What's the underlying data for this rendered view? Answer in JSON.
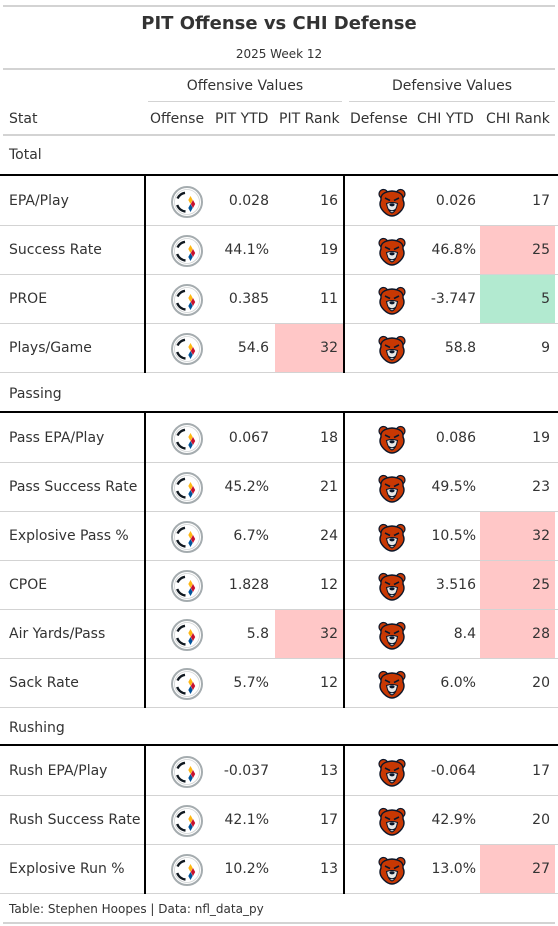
{
  "title": "PIT Offense vs CHI Defense",
  "subtitle": "2025 Week 12",
  "spanners": {
    "offense": "Offensive Values",
    "defense": "Defensive Values"
  },
  "columns": {
    "stat": "Stat",
    "offense": "Offense",
    "pit_ytd": "PIT YTD",
    "pit_rank": "PIT Rank",
    "defense": "Defense",
    "chi_ytd": "CHI YTD",
    "chi_rank": "CHI Rank"
  },
  "icons": {
    "offense_logo": "steelers-logo",
    "defense_logo": "bears-logo"
  },
  "colors": {
    "bad_rank": "#ffc7c7",
    "good_rank": "#b2ead0",
    "steelers_gold": "#ffb612",
    "bears_orange": "#c83803",
    "bears_navy": "#0b162a"
  },
  "groups": [
    {
      "name": "Total",
      "rows": [
        {
          "stat": "EPA/Play",
          "pit_ytd": "0.028",
          "pit_rank": "16",
          "pit_rank_color": "",
          "chi_ytd": "0.026",
          "chi_rank": "17",
          "chi_rank_color": ""
        },
        {
          "stat": "Success Rate",
          "pit_ytd": "44.1%",
          "pit_rank": "19",
          "pit_rank_color": "",
          "chi_ytd": "46.8%",
          "chi_rank": "25",
          "chi_rank_color": "#ffc7c7"
        },
        {
          "stat": "PROE",
          "pit_ytd": "0.385",
          "pit_rank": "11",
          "pit_rank_color": "",
          "chi_ytd": "-3.747",
          "chi_rank": "5",
          "chi_rank_color": "#b2ead0"
        },
        {
          "stat": "Plays/Game",
          "pit_ytd": "54.6",
          "pit_rank": "32",
          "pit_rank_color": "#ffc7c7",
          "chi_ytd": "58.8",
          "chi_rank": "9",
          "chi_rank_color": ""
        }
      ]
    },
    {
      "name": "Passing",
      "rows": [
        {
          "stat": "Pass EPA/Play",
          "pit_ytd": "0.067",
          "pit_rank": "18",
          "pit_rank_color": "",
          "chi_ytd": "0.086",
          "chi_rank": "19",
          "chi_rank_color": ""
        },
        {
          "stat": "Pass Success Rate",
          "pit_ytd": "45.2%",
          "pit_rank": "21",
          "pit_rank_color": "",
          "chi_ytd": "49.5%",
          "chi_rank": "23",
          "chi_rank_color": ""
        },
        {
          "stat": "Explosive Pass %",
          "pit_ytd": "6.7%",
          "pit_rank": "24",
          "pit_rank_color": "",
          "chi_ytd": "10.5%",
          "chi_rank": "32",
          "chi_rank_color": "#ffc7c7"
        },
        {
          "stat": "CPOE",
          "pit_ytd": "1.828",
          "pit_rank": "12",
          "pit_rank_color": "",
          "chi_ytd": "3.516",
          "chi_rank": "25",
          "chi_rank_color": "#ffc7c7"
        },
        {
          "stat": "Air Yards/Pass",
          "pit_ytd": "5.8",
          "pit_rank": "32",
          "pit_rank_color": "#ffc7c7",
          "chi_ytd": "8.4",
          "chi_rank": "28",
          "chi_rank_color": "#ffc7c7"
        },
        {
          "stat": "Sack Rate",
          "pit_ytd": "5.7%",
          "pit_rank": "12",
          "pit_rank_color": "",
          "chi_ytd": "6.0%",
          "chi_rank": "20",
          "chi_rank_color": ""
        }
      ]
    },
    {
      "name": "Rushing",
      "rows": [
        {
          "stat": "Rush EPA/Play",
          "pit_ytd": "-0.037",
          "pit_rank": "13",
          "pit_rank_color": "",
          "chi_ytd": "-0.064",
          "chi_rank": "17",
          "chi_rank_color": ""
        },
        {
          "stat": "Rush Success Rate",
          "pit_ytd": "42.1%",
          "pit_rank": "17",
          "pit_rank_color": "",
          "chi_ytd": "42.9%",
          "chi_rank": "20",
          "chi_rank_color": ""
        },
        {
          "stat": "Explosive Run %",
          "pit_ytd": "10.2%",
          "pit_rank": "13",
          "pit_rank_color": "",
          "chi_ytd": "13.0%",
          "chi_rank": "27",
          "chi_rank_color": "#ffc7c7"
        }
      ]
    }
  ],
  "footer": "Table: Stephen Hoopes | Data: nfl_data_py"
}
